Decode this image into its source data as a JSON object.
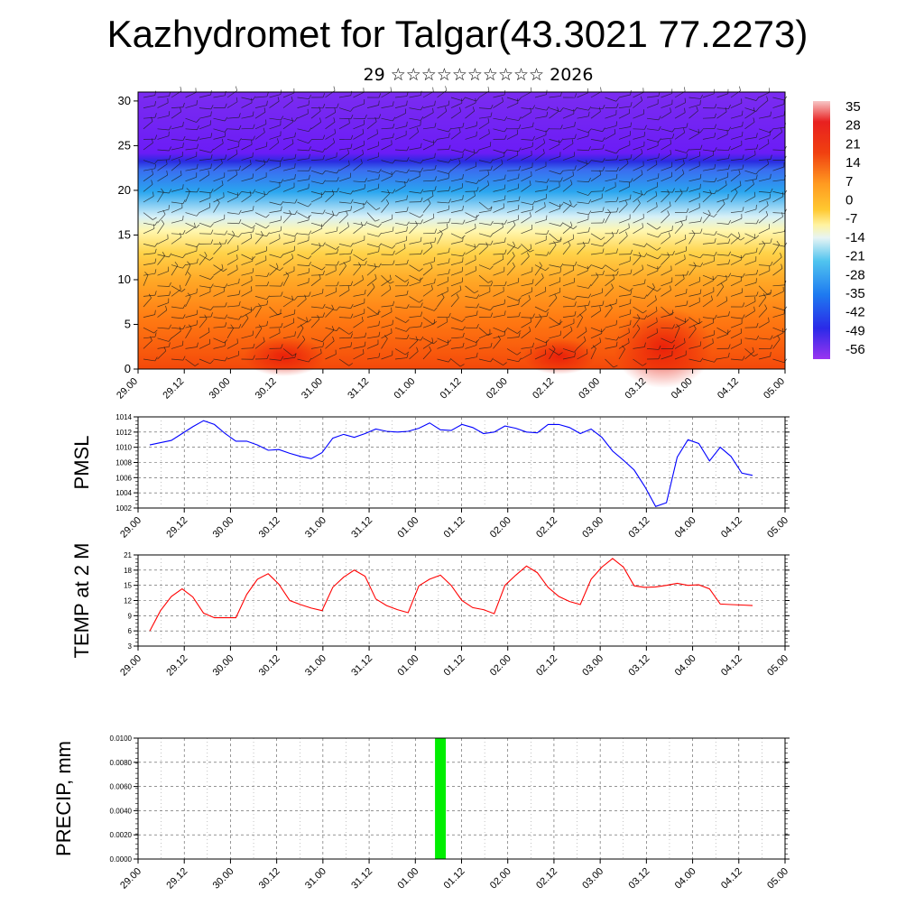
{
  "title": "Kazhydromet for Talgar(43.3021 77.2273)",
  "subtitle": "29 ☆☆☆☆☆☆☆☆☆☆ 2026",
  "colors": {
    "pmsl_line": "#0000ff",
    "temp_line": "#ff0000",
    "precip_bar": "#00ee00"
  },
  "chart_data": [
    {
      "type": "heatmap",
      "name": "cross-section",
      "xticks": [
        "29.00",
        "29.12",
        "30.00",
        "30.12",
        "31.00",
        "31.12",
        "01.00",
        "01.12",
        "02.00",
        "02.12",
        "03.00",
        "03.12",
        "04.00",
        "04.12",
        "05.00"
      ],
      "yticks": [
        "0",
        "5",
        "10",
        "15",
        "20",
        "25",
        "30"
      ],
      "ylim": [
        0,
        31
      ],
      "colorbar": [
        "35",
        "28",
        "21",
        "14",
        "7",
        "0",
        "-7",
        "-14",
        "-21",
        "-28",
        "-35",
        "-42",
        "-49",
        "-56"
      ],
      "overlay": "wind barbs"
    },
    {
      "type": "line",
      "name": "pmsl",
      "ylabel": "PMSL",
      "xticks": [
        "29.00",
        "29.12",
        "30.00",
        "30.12",
        "31.00",
        "31.12",
        "01.00",
        "01.12",
        "02.00",
        "02.12",
        "03.00",
        "03.12",
        "04.00",
        "04.12",
        "05.00"
      ],
      "yticks": [
        "1002",
        "1004",
        "1006",
        "1008",
        "1010",
        "1012",
        "1014"
      ],
      "ylim": [
        1002,
        1014
      ],
      "x": [
        0,
        3,
        6,
        9,
        12,
        15,
        18,
        21,
        24,
        27,
        30,
        33,
        36,
        39,
        42,
        45,
        48,
        51,
        54,
        57,
        60,
        63,
        66,
        69,
        72,
        75,
        78,
        81,
        84,
        87,
        90,
        93,
        96,
        99,
        102,
        105,
        108,
        111,
        114,
        117,
        120,
        123,
        126,
        129,
        132,
        135,
        138,
        141,
        144,
        147,
        150,
        153,
        156,
        159,
        162,
        165,
        168
      ],
      "y": [
        1010.3,
        1010.6,
        1010.9,
        1011.8,
        1012.7,
        1013.5,
        1013.0,
        1011.8,
        1010.8,
        1010.8,
        1010.3,
        1009.6,
        1009.7,
        1009.2,
        1008.8,
        1008.5,
        1009.3,
        1011.2,
        1011.7,
        1011.3,
        1011.8,
        1012.4,
        1012.1,
        1012.0,
        1012.1,
        1012.5,
        1013.2,
        1012.3,
        1012.2,
        1013.0,
        1012.6,
        1011.8,
        1012.0,
        1012.8,
        1012.5,
        1012.0,
        1011.9,
        1013.0,
        1013.0,
        1012.6,
        1011.8,
        1012.4,
        1011.3,
        1009.5,
        1008.3,
        1007.0,
        1004.8,
        1002.2,
        1002.7,
        1008.7,
        1011.0,
        1010.5,
        1008.2,
        1010.0,
        1008.8,
        1006.6,
        1006.3
      ]
    },
    {
      "type": "line",
      "name": "temp",
      "ylabel": "TEMP at 2 M",
      "xticks": [
        "29.00",
        "29.12",
        "30.00",
        "30.12",
        "31.00",
        "31.12",
        "01.00",
        "01.12",
        "02.00",
        "02.12",
        "03.00",
        "03.12",
        "04.00",
        "04.12",
        "05.00"
      ],
      "yticks": [
        "3",
        "6",
        "9",
        "12",
        "15",
        "18",
        "21"
      ],
      "ylim": [
        3,
        21
      ],
      "x": [
        0,
        3,
        6,
        9,
        12,
        15,
        18,
        21,
        24,
        27,
        30,
        33,
        36,
        39,
        42,
        45,
        48,
        51,
        54,
        57,
        60,
        63,
        66,
        69,
        72,
        75,
        78,
        81,
        84,
        87,
        90,
        93,
        96,
        99,
        102,
        105,
        108,
        111,
        114,
        117,
        120,
        123,
        126,
        129,
        132,
        135,
        138,
        141,
        144,
        147,
        150,
        153,
        156,
        159,
        162,
        165,
        168
      ],
      "y": [
        6.0,
        10.0,
        12.8,
        14.3,
        12.7,
        9.5,
        8.6,
        8.6,
        8.6,
        13.2,
        16.2,
        17.3,
        15.2,
        12.0,
        11.2,
        10.5,
        10.0,
        14.6,
        16.6,
        18.0,
        16.8,
        12.3,
        11.0,
        10.2,
        9.6,
        14.9,
        16.2,
        17.0,
        15.0,
        12.0,
        10.6,
        10.2,
        9.4,
        15.0,
        17.0,
        18.8,
        17.5,
        14.6,
        12.8,
        11.8,
        11.2,
        16.2,
        18.6,
        20.3,
        18.6,
        14.9,
        14.6,
        14.7,
        15.0,
        15.4,
        15.0,
        15.1,
        14.3,
        11.3,
        11.2,
        11.1,
        11.0
      ]
    },
    {
      "type": "bar",
      "name": "precip",
      "ylabel": "PRECIP, mm",
      "xticks": [
        "29.00",
        "29.12",
        "30.00",
        "30.12",
        "31.00",
        "31.12",
        "01.00",
        "01.12",
        "02.00",
        "02.12",
        "03.00",
        "03.12",
        "04.00",
        "04.12",
        "05.00"
      ],
      "yticks": [
        "0.0000",
        "0.0020",
        "0.0040",
        "0.0060",
        "0.0080",
        "0.0100"
      ],
      "ylim": [
        0,
        0.01
      ],
      "bars": [
        {
          "x": 81,
          "value": 0.01
        }
      ]
    }
  ]
}
